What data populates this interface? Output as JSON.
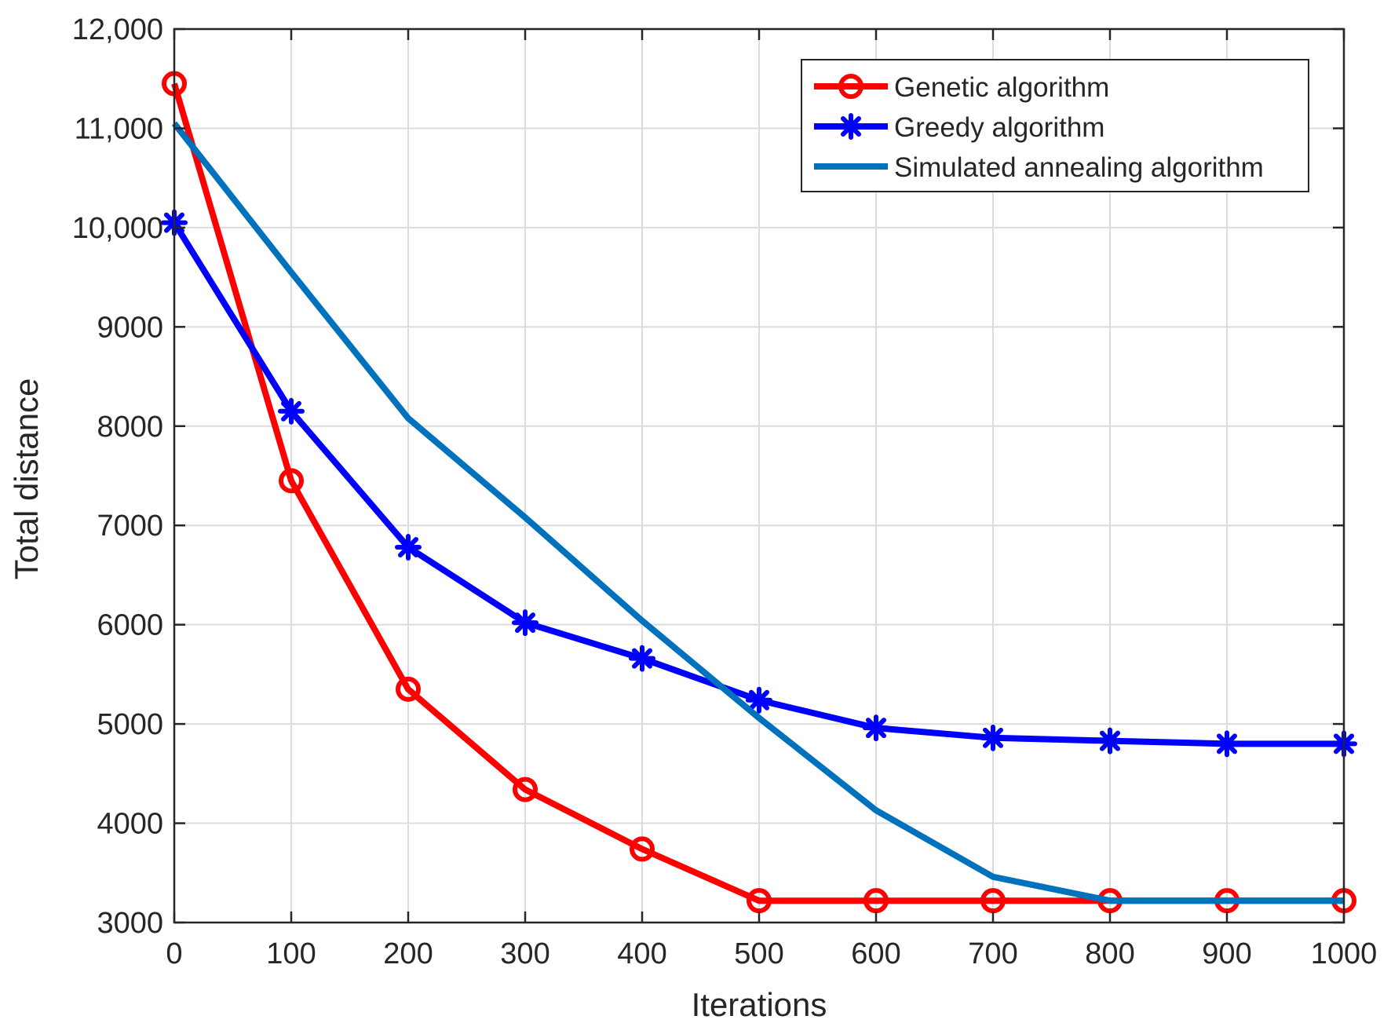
{
  "chart_data": {
    "type": "line",
    "title": "",
    "xlabel": "Iterations",
    "ylabel": "Total distance",
    "xlim": [
      0,
      1000
    ],
    "ylim": [
      3000,
      12000
    ],
    "grid": true,
    "legend_position": "top-right",
    "x_ticks": [
      0,
      100,
      200,
      300,
      400,
      500,
      600,
      700,
      800,
      900,
      1000
    ],
    "x_tick_labels": [
      "0",
      "100",
      "200",
      "300",
      "400",
      "500",
      "600",
      "700",
      "800",
      "900",
      "1000"
    ],
    "y_ticks": [
      3000,
      4000,
      5000,
      6000,
      7000,
      8000,
      9000,
      10000,
      11000,
      12000
    ],
    "y_tick_labels": [
      "3000",
      "4000",
      "5000",
      "6000",
      "7000",
      "8000",
      "9000",
      "10,000",
      "11,000",
      "12,000"
    ],
    "x": [
      0,
      100,
      200,
      300,
      400,
      500,
      600,
      700,
      800,
      900,
      1000
    ],
    "series": [
      {
        "name": "Genetic algorithm",
        "color": "#ff0000",
        "marker": "circle",
        "values": [
          11450,
          7450,
          5350,
          4340,
          3740,
          3220,
          3220,
          3220,
          3220,
          3220,
          3220
        ]
      },
      {
        "name": "Greedy algorithm",
        "color": "#0000ff",
        "marker": "star",
        "values": [
          10050,
          8150,
          6780,
          6020,
          5660,
          5240,
          4960,
          4860,
          4830,
          4800,
          4800
        ]
      },
      {
        "name": "Simulated annealing algorithm",
        "color": "#0072bd",
        "marker": "none",
        "values": [
          11050,
          9550,
          8080,
          7080,
          6040,
          5060,
          4130,
          3460,
          3220,
          3220,
          3220
        ]
      }
    ]
  }
}
